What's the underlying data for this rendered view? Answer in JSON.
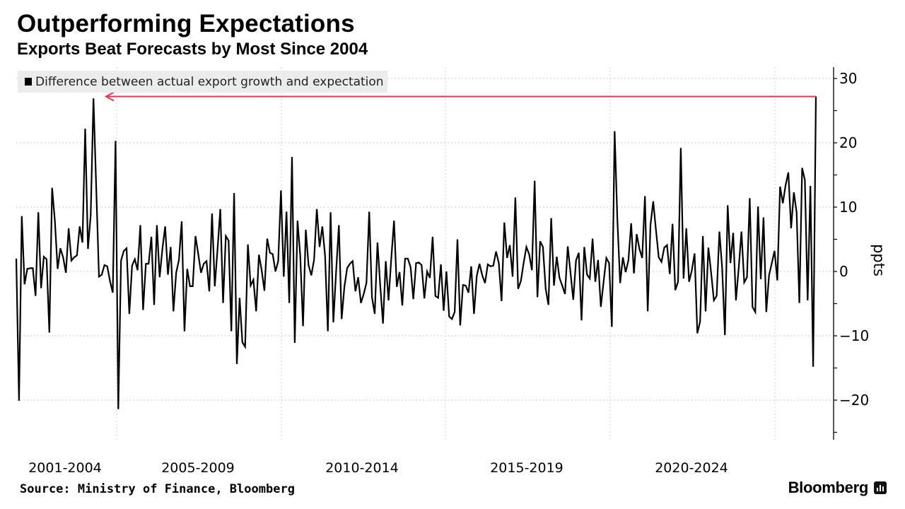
{
  "header": {
    "title": "Outperforming Expectations",
    "subtitle": "Exports Beat Forecasts by Most Since 2004"
  },
  "footer": {
    "source": "Source: Ministry of Finance, Bloomberg",
    "brand": "Bloomberg",
    "brand_icon": "bar-chart-icon"
  },
  "chart_data": {
    "type": "line",
    "title": "Outperforming Expectations",
    "subtitle": "Exports Beat Forecasts by Most Since 2004",
    "ylabel": "ppts",
    "xlabel": "",
    "ylim": [
      -26,
      32
    ],
    "yticks": [
      30,
      20,
      10,
      0,
      -10,
      -20
    ],
    "x_tick_labels": [
      "2001-2004",
      "2005-2009",
      "2010-2014",
      "2015-2019",
      "2020-2024"
    ],
    "grid": true,
    "y_axis_side": "right",
    "legend": {
      "placement": "top-left",
      "entries": [
        "Difference between actual export growth and expectation"
      ]
    },
    "annotation": {
      "type": "arrow",
      "color": "#e8374f",
      "description_value": 27.2
    },
    "series": [
      {
        "name": "Difference between actual export growth and expectation",
        "color": "#000000",
        "values": [
          2.0,
          -20.1,
          8.6,
          -2.0,
          0.4,
          0.5,
          0.5,
          -3.8,
          9.2,
          -2.6,
          2.3,
          1.9,
          -9.5,
          13.0,
          7.9,
          0.4,
          3.6,
          2.2,
          -0.2,
          6.7,
          1.7,
          2.2,
          2.5,
          7.0,
          4.5,
          22.2,
          3.5,
          8.8,
          26.9,
          13.0,
          -0.8,
          -0.5,
          1.0,
          0.8,
          -1.5,
          -3.3,
          20.3,
          -21.4,
          1.7,
          3.2,
          3.6,
          -6.6,
          0.9,
          1.9,
          0.2,
          7.2,
          -6.0,
          1.2,
          1.2,
          5.4,
          -5.2,
          7.2,
          -0.9,
          3.5,
          7.0,
          -0.5,
          3.8,
          -6.2,
          -0.2,
          1.8,
          7.8,
          -9.3,
          0.4,
          -2.3,
          -2.3,
          5.5,
          2.7,
          -0.2,
          1.2,
          1.6,
          -3.1,
          9.0,
          -2.3,
          3.5,
          9.7,
          -4.9,
          5.5,
          4.8,
          -9.3,
          12.2,
          -14.4,
          -4.1,
          -11.0,
          -11.7,
          4.2,
          -2.2,
          -1.3,
          -6.2,
          2.6,
          0.2,
          -3.0,
          5.1,
          2.9,
          2.7,
          0.0,
          1.6,
          12.6,
          -0.8,
          9.3,
          -4.9,
          17.8,
          -11.1,
          7.9,
          2.4,
          -8.5,
          6.5,
          1.0,
          -0.6,
          1.8,
          9.7,
          3.8,
          7.0,
          2.4,
          -9.3,
          9.2,
          -7.9,
          0.0,
          7.2,
          -7.4,
          -2.4,
          0.5,
          1.2,
          1.6,
          -3.1,
          -0.9,
          -4.9,
          -3.5,
          -1.8,
          9.3,
          -4.0,
          -6.6,
          4.5,
          -2.2,
          -8.1,
          1.6,
          -4.5,
          2.0,
          7.9,
          -2.4,
          -0.1,
          -5.3,
          2.0,
          2.0,
          0.7,
          -4.3,
          1.3,
          1.4,
          1.0,
          -4.2,
          0.0,
          -1.0,
          5.4,
          -3.8,
          -4.1,
          1.1,
          -6.1,
          0.0,
          -7.0,
          -7.4,
          -6.3,
          5.0,
          -8.4,
          -2.1,
          -2.2,
          -3.3,
          0.8,
          -6.6,
          -0.7,
          1.2,
          -0.6,
          -1.8,
          1.1,
          0.8,
          0.9,
          3.1,
          1.3,
          -4.6,
          7.6,
          2.1,
          4.1,
          -0.8,
          11.5,
          -2.7,
          -1.5,
          1.3,
          3.8,
          2.7,
          0.2,
          14.1,
          -4.0,
          4.7,
          3.8,
          -2.7,
          -5.2,
          8.3,
          -2.2,
          2.3,
          -1.0,
          -2.2,
          -3.5,
          3.9,
          -0.2,
          -4.4,
          1.7,
          2.9,
          -7.6,
          3.8,
          -0.5,
          -1.1,
          5.1,
          -1.6,
          1.8,
          -5.5,
          -1.6,
          2.1,
          1.3,
          -8.6,
          21.8,
          8.0,
          -1.8,
          2.2,
          -0.1,
          1.7,
          7.5,
          -0.3,
          5.8,
          3.5,
          2.1,
          11.7,
          -6.2,
          7.2,
          10.9,
          6.4,
          2.2,
          1.5,
          3.7,
          4.1,
          -0.4,
          7.4,
          -2.9,
          -1.6,
          19.2,
          -1.1,
          6.7,
          -1.6,
          0.2,
          2.8,
          -9.6,
          -7.8,
          5.5,
          -6.2,
          3.7,
          -0.2,
          -4.5,
          -3.8,
          6.2,
          0.5,
          -9.9,
          10.3,
          1.3,
          6.0,
          -4.5,
          0.5,
          6.2,
          -1.7,
          -0.9,
          11.4,
          -5.5,
          -6.3,
          10.1,
          -1.2,
          8.4,
          -6.3,
          -0.6,
          1.3,
          3.2,
          -1.4,
          13.2,
          10.6,
          13.4,
          15.4,
          6.7,
          12.3,
          9.2,
          -4.9,
          16.1,
          14.2,
          -4.5,
          13.3,
          -14.8,
          27.2
        ]
      }
    ]
  }
}
